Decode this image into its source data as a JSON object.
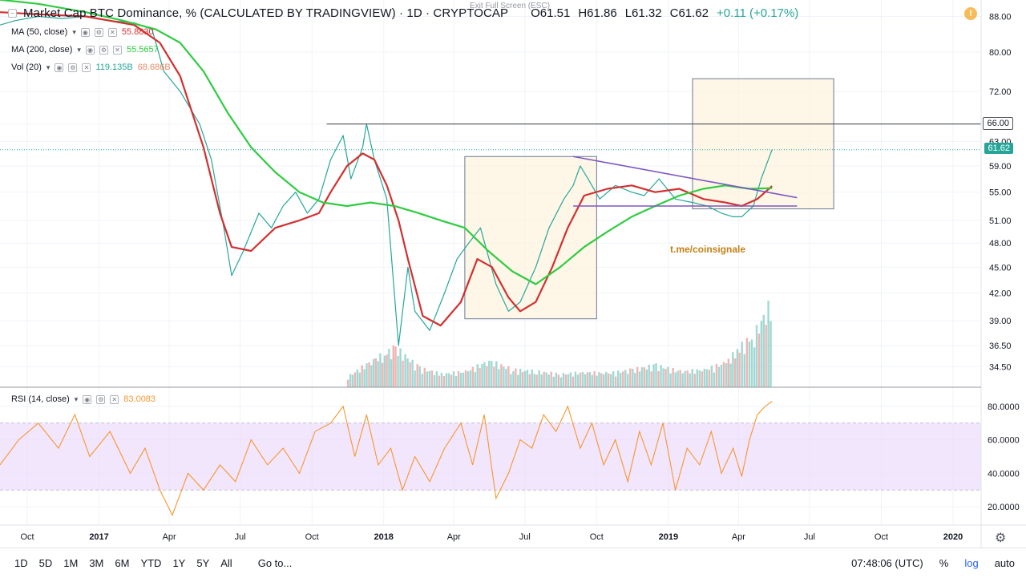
{
  "header": {
    "title": "Market Cap BTC Dominance, % (CALCULATED BY TRADINGVIEW) · 1D · CRYPTOCAP",
    "ohlc": {
      "open": "O61.51",
      "high": "H61.86",
      "low": "L61.32",
      "close": "C61.62",
      "change": "+0.11 (+0.17%)"
    },
    "exit_full_screen": "Exit Full Screen (ESC)"
  },
  "indicators": {
    "ma50": {
      "label": "MA (50, close)",
      "value": "55.8830",
      "color": "#d32f2f"
    },
    "ma200": {
      "label": "MA (200, close)",
      "value": "55.5657",
      "color": "#2ecc40"
    },
    "vol": {
      "label": "Vol (20)",
      "value1": "119.135B",
      "value2": "68.686B"
    },
    "rsi": {
      "label": "RSI (14, close)",
      "value": "83.0083",
      "color": "#f7962e"
    }
  },
  "watermark": "t.me/coinsignale",
  "price_tags": {
    "resistance": "66.00",
    "last": "61.62"
  },
  "bottom_bar": {
    "timeframes": [
      "1D",
      "5D",
      "1M",
      "3M",
      "6M",
      "YTD",
      "1Y",
      "5Y",
      "All"
    ],
    "goto": "Go to...",
    "clock": "07:48:06 (UTC)",
    "percent": "%",
    "log": "log",
    "auto": "auto"
  },
  "chart_data": [
    {
      "type": "line",
      "title": "Market Cap BTC Dominance, %",
      "y_scale": "log",
      "ylim": [
        33,
        90
      ],
      "y_ticks": [
        34.5,
        36.5,
        39,
        42,
        45,
        48,
        51,
        55,
        59,
        63,
        66,
        72,
        80,
        88
      ],
      "y_tick_labels": [
        "34.50",
        "36.50",
        "39.00",
        "42.00",
        "45.00",
        "48.00",
        "51.00",
        "55.00",
        "59.00",
        "63.00",
        "66.00",
        "72.00",
        "80.00",
        "88.00"
      ],
      "x_tick_labels": [
        "Oct",
        "2017",
        "Apr",
        "Jul",
        "Oct",
        "2018",
        "Apr",
        "Jul",
        "Oct",
        "2019",
        "Apr",
        "Jul",
        "Oct",
        "2020"
      ],
      "x_ticks": [
        "2016-10-01",
        "2017-01-01",
        "2017-04-01",
        "2017-07-01",
        "2017-10-01",
        "2018-01-01",
        "2018-04-01",
        "2018-07-01",
        "2018-10-01",
        "2019-01-01",
        "2019-04-01",
        "2019-07-01",
        "2019-10-01",
        "2020-01-01"
      ],
      "xlim": [
        "2016-08-27",
        "2020-02-06"
      ],
      "series": [
        {
          "name": "BTC Dominance",
          "color": "#26a69a",
          "x": [
            "2016-08-27",
            "2016-09-15",
            "2016-10-15",
            "2016-11-15",
            "2016-12-15",
            "2017-01-15",
            "2017-02-15",
            "2017-03-10",
            "2017-03-25",
            "2017-04-15",
            "2017-05-10",
            "2017-05-25",
            "2017-06-10",
            "2017-06-20",
            "2017-07-05",
            "2017-07-25",
            "2017-08-10",
            "2017-08-25",
            "2017-09-10",
            "2017-09-25",
            "2017-10-10",
            "2017-10-25",
            "2017-11-10",
            "2017-11-20",
            "2017-12-05",
            "2017-12-10",
            "2017-12-20",
            "2018-01-05",
            "2018-01-20",
            "2018-02-01",
            "2018-02-10",
            "2018-03-01",
            "2018-03-20",
            "2018-04-05",
            "2018-04-20",
            "2018-05-05",
            "2018-05-25",
            "2018-06-10",
            "2018-06-25",
            "2018-07-15",
            "2018-08-01",
            "2018-08-20",
            "2018-09-01",
            "2018-09-10",
            "2018-09-20",
            "2018-10-05",
            "2018-10-25",
            "2018-11-15",
            "2018-12-01",
            "2018-12-20",
            "2019-01-10",
            "2019-02-01",
            "2019-02-20",
            "2019-03-10",
            "2019-03-25",
            "2019-04-05",
            "2019-04-20",
            "2019-04-30",
            "2019-05-14"
          ],
          "y": [
            86,
            87,
            88,
            87.5,
            88,
            87,
            86.5,
            85,
            76,
            72,
            66,
            60,
            50,
            44,
            47,
            52,
            50,
            53,
            55,
            52,
            54,
            60,
            64,
            57,
            62,
            66,
            60,
            54,
            36.5,
            45,
            40,
            38,
            42,
            46,
            48,
            50,
            43,
            40,
            41,
            45,
            50,
            54,
            56,
            59,
            57,
            54,
            56,
            55,
            54.5,
            57,
            54,
            53.5,
            53,
            52,
            51.5,
            51.5,
            53,
            57,
            61.62
          ]
        },
        {
          "name": "MA (50, close)",
          "color": "#d32f2f",
          "x": [
            "2016-08-27",
            "2016-10-15",
            "2016-12-15",
            "2017-02-15",
            "2017-03-20",
            "2017-04-15",
            "2017-05-15",
            "2017-06-05",
            "2017-06-20",
            "2017-07-15",
            "2017-08-15",
            "2017-09-15",
            "2017-10-10",
            "2017-10-25",
            "2017-11-15",
            "2017-12-05",
            "2017-12-20",
            "2018-01-05",
            "2018-01-20",
            "2018-02-01",
            "2018-02-20",
            "2018-03-15",
            "2018-04-10",
            "2018-05-01",
            "2018-05-20",
            "2018-06-10",
            "2018-06-25",
            "2018-07-15",
            "2018-08-05",
            "2018-08-25",
            "2018-09-15",
            "2018-10-15",
            "2018-11-15",
            "2018-12-15",
            "2019-01-15",
            "2019-02-15",
            "2019-03-15",
            "2019-04-05",
            "2019-04-25",
            "2019-05-14"
          ],
          "y": [
            89,
            88.5,
            88,
            86,
            82,
            75,
            62,
            52,
            47.5,
            47,
            50,
            51,
            52,
            55,
            59,
            61,
            60,
            56,
            51,
            46,
            39.5,
            38.5,
            41,
            46,
            45,
            41.5,
            40,
            41,
            45,
            50,
            54.5,
            55.5,
            56,
            55,
            55.5,
            54,
            53.5,
            53,
            54,
            55.9
          ]
        },
        {
          "name": "MA (200, close)",
          "color": "#2ecc40",
          "x": [
            "2016-08-27",
            "2016-10-15",
            "2016-12-15",
            "2017-02-01",
            "2017-03-15",
            "2017-04-15",
            "2017-05-15",
            "2017-06-15",
            "2017-07-15",
            "2017-08-15",
            "2017-09-15",
            "2017-10-15",
            "2017-11-15",
            "2017-12-15",
            "2018-01-15",
            "2018-02-15",
            "2018-03-15",
            "2018-04-15",
            "2018-05-15",
            "2018-06-15",
            "2018-07-15",
            "2018-08-15",
            "2018-09-15",
            "2018-10-15",
            "2018-11-15",
            "2018-12-15",
            "2019-01-15",
            "2019-02-15",
            "2019-03-15",
            "2019-04-15",
            "2019-05-14"
          ],
          "y": [
            92,
            91,
            89,
            87,
            85,
            82,
            76,
            68,
            62,
            58,
            55,
            53.5,
            53,
            53.5,
            53,
            52,
            51,
            50,
            47,
            44.5,
            43,
            45,
            47.5,
            49.5,
            51.5,
            53,
            54.5,
            55.5,
            56,
            55.5,
            55.6
          ]
        }
      ],
      "volume": {
        "name": "Vol (20)",
        "x": [
          "2017-11-15",
          "2017-12-15",
          "2018-01-01",
          "2018-01-15",
          "2018-02-15",
          "2018-03-15",
          "2018-04-15",
          "2018-05-15",
          "2018-06-15",
          "2018-07-15",
          "2018-08-15",
          "2018-09-15",
          "2018-10-15",
          "2018-11-15",
          "2018-12-15",
          "2019-01-15",
          "2019-02-15",
          "2019-03-15",
          "2019-04-01",
          "2019-04-20",
          "2019-05-14"
        ],
        "relative": [
          0.12,
          0.3,
          0.38,
          0.45,
          0.22,
          0.15,
          0.18,
          0.3,
          0.2,
          0.18,
          0.15,
          0.17,
          0.16,
          0.2,
          0.25,
          0.18,
          0.2,
          0.28,
          0.45,
          0.6,
          1.0
        ]
      },
      "annotations": {
        "resistance_line": 66.0,
        "support_line": {
          "from": "2018-09-01",
          "to": "2019-06-15",
          "y": 53
        },
        "falling_trendline": {
          "from": [
            "2018-09-01",
            60.5
          ],
          "to": [
            "2019-06-15",
            54.2
          ]
        },
        "box_1": {
          "from": [
            "2018-04-15",
            39.2
          ],
          "to": [
            "2018-10-01",
            60.5
          ]
        },
        "box_2": {
          "from": [
            "2019-02-01",
            52.6
          ],
          "to": [
            "2019-08-01",
            74.5
          ]
        }
      }
    },
    {
      "type": "line",
      "title": "RSI (14, close)",
      "ylim": [
        10,
        90
      ],
      "y_ticks": [
        20,
        40,
        60,
        80
      ],
      "y_tick_labels": [
        "20.0000",
        "40.0000",
        "60.0000",
        "80.0000"
      ],
      "band": [
        30,
        70
      ],
      "series": [
        {
          "name": "RSI",
          "color": "#f7962e",
          "x": [
            "2016-08-27",
            "2016-09-20",
            "2016-10-15",
            "2016-11-10",
            "2016-12-01",
            "2016-12-20",
            "2017-01-15",
            "2017-02-10",
            "2017-03-01",
            "2017-03-20",
            "2017-04-05",
            "2017-04-25",
            "2017-05-15",
            "2017-06-05",
            "2017-06-25",
            "2017-07-15",
            "2017-08-05",
            "2017-08-25",
            "2017-09-15",
            "2017-10-05",
            "2017-10-25",
            "2017-11-10",
            "2017-11-25",
            "2017-12-10",
            "2017-12-25",
            "2018-01-10",
            "2018-01-25",
            "2018-02-10",
            "2018-03-01",
            "2018-03-20",
            "2018-04-10",
            "2018-04-25",
            "2018-05-10",
            "2018-05-25",
            "2018-06-10",
            "2018-06-25",
            "2018-07-10",
            "2018-07-25",
            "2018-08-10",
            "2018-08-25",
            "2018-09-10",
            "2018-09-25",
            "2018-10-10",
            "2018-10-25",
            "2018-11-10",
            "2018-11-25",
            "2018-12-10",
            "2018-12-25",
            "2019-01-10",
            "2019-01-25",
            "2019-02-10",
            "2019-02-25",
            "2019-03-10",
            "2019-03-25",
            "2019-04-05",
            "2019-04-15",
            "2019-04-25",
            "2019-05-05",
            "2019-05-14"
          ],
          "y": [
            45,
            60,
            70,
            55,
            75,
            50,
            65,
            40,
            55,
            30,
            15,
            40,
            30,
            45,
            35,
            60,
            45,
            55,
            40,
            65,
            70,
            80,
            50,
            75,
            45,
            55,
            30,
            50,
            35,
            55,
            70,
            45,
            75,
            25,
            40,
            60,
            55,
            75,
            65,
            80,
            55,
            70,
            45,
            60,
            35,
            65,
            45,
            70,
            30,
            55,
            45,
            65,
            40,
            55,
            38,
            60,
            75,
            80,
            83
          ]
        }
      ]
    }
  ]
}
